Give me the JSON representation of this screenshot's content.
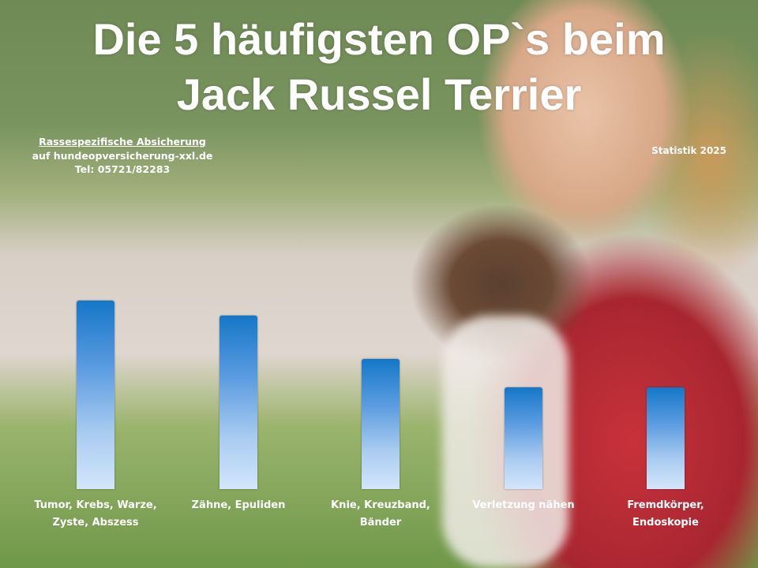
{
  "title_line1": "Die 5 häufigsten OP`s beim",
  "title_line2": "Jack Russel Terrier",
  "info": {
    "line1": "Rassespezifische  Absicherung",
    "line2": "auf hundeopversicherung-xxl.de",
    "line3": "Tel: 05721/82283"
  },
  "statistik": "Statistik 2025",
  "chart_data": {
    "type": "bar",
    "title": "Die 5 häufigsten OP`s beim Jack Russel Terrier",
    "categories": [
      "Tumor, Krebs, Warze, Zyste, Abszess",
      "Zähne, Epuliden",
      "Knie, Kreuzband, Bänder",
      "Verletzung nähen",
      "Fremdkörper, Endoskopie"
    ],
    "values": [
      100,
      92,
      69,
      54,
      54
    ],
    "value_note_scale": "relative",
    "bar_color_top": "#1577c8",
    "bar_color_bottom": "#d3e6fb",
    "grid": false,
    "axes_visible": false
  }
}
